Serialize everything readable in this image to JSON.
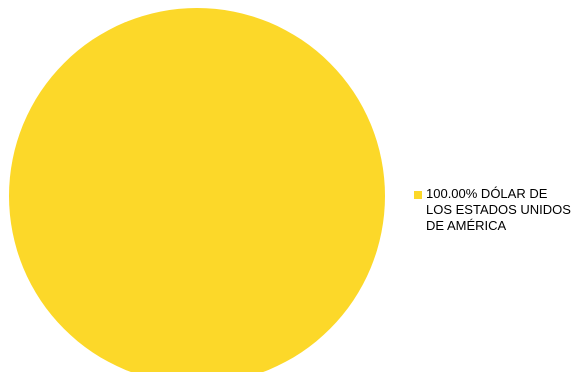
{
  "chart_data": {
    "type": "pie",
    "title": "",
    "slices": [
      {
        "label": "DÓLAR DE LOS ESTADOS UNIDOS DE AMÉRICA",
        "value": 100.0,
        "percent_label": "100.00%",
        "color": "#FCD829"
      }
    ],
    "legend_placement": "right",
    "legend": {
      "label": "100.00% DÓLAR DE LOS ESTADOS UNIDOS DE AMÉRICA"
    }
  }
}
